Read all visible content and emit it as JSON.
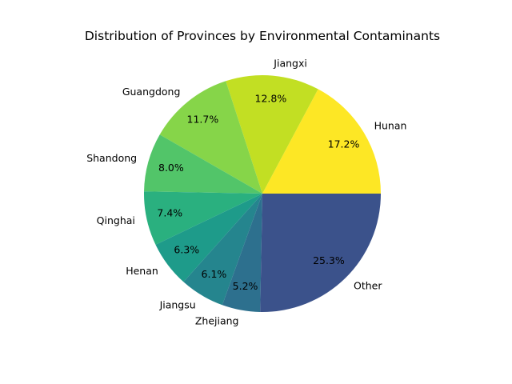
{
  "chart_data": {
    "type": "pie",
    "title": "Distribution of Provinces by Environmental Contaminants",
    "start_angle_deg": 0,
    "direction": "counterclockwise",
    "slices": [
      {
        "label": "Hunan",
        "value": 17.2,
        "pct_label": "17.2%",
        "color": "#fde725"
      },
      {
        "label": "Jiangxi",
        "value": 12.8,
        "pct_label": "12.8%",
        "color": "#c2df23"
      },
      {
        "label": "Guangdong",
        "value": 11.7,
        "pct_label": "11.7%",
        "color": "#86d549"
      },
      {
        "label": "Shandong",
        "value": 8.0,
        "pct_label": "8.0%",
        "color": "#52c569"
      },
      {
        "label": "Qinghai",
        "value": 7.4,
        "pct_label": "7.4%",
        "color": "#2ab07f"
      },
      {
        "label": "Henan",
        "value": 6.3,
        "pct_label": "6.3%",
        "color": "#1e9b8a"
      },
      {
        "label": "Jiangsu",
        "value": 6.1,
        "pct_label": "6.1%",
        "color": "#25858e"
      },
      {
        "label": "Zhejiang",
        "value": 5.2,
        "pct_label": "5.2%",
        "color": "#2d708e"
      },
      {
        "label": "Other",
        "value": 25.3,
        "pct_label": "25.3%",
        "color": "#3b528b"
      }
    ]
  }
}
